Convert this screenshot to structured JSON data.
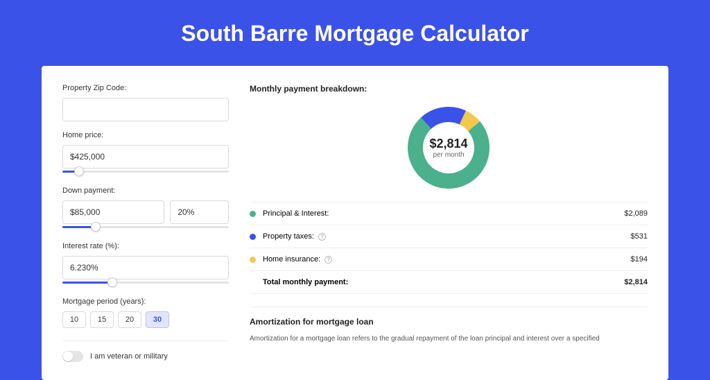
{
  "page": {
    "title": "South Barre Mortgage Calculator",
    "background_color": "#3b52e8"
  },
  "form": {
    "zip": {
      "label": "Property Zip Code:",
      "value": ""
    },
    "home_price": {
      "label": "Home price:",
      "value": "$425,000",
      "slider_pct": 10
    },
    "down_payment": {
      "label": "Down payment:",
      "amount": "$85,000",
      "percent": "20%",
      "slider_pct": 20
    },
    "interest_rate": {
      "label": "Interest rate (%):",
      "value": "6.230%",
      "slider_pct": 30
    },
    "period": {
      "label": "Mortgage period (years):",
      "options": [
        "10",
        "15",
        "20",
        "30"
      ],
      "selected": "30"
    },
    "veteran": {
      "label": "I am veteran or military",
      "value": false
    }
  },
  "breakdown": {
    "title": "Monthly payment breakdown:",
    "total_amount": "$2,814",
    "total_sub": "per month",
    "items": [
      {
        "key": "pi",
        "label": "Principal & Interest:",
        "value": "$2,089",
        "color": "#4bb08c",
        "pct": 74.2,
        "has_info": false
      },
      {
        "key": "tax",
        "label": "Property taxes:",
        "value": "$531",
        "color": "#3b52e8",
        "pct": 18.9,
        "has_info": true
      },
      {
        "key": "ins",
        "label": "Home insurance:",
        "value": "$194",
        "color": "#f2c94c",
        "pct": 6.9,
        "has_info": true
      }
    ],
    "total_row": {
      "label": "Total monthly payment:",
      "value": "$2,814"
    },
    "donut": {
      "size": 124,
      "radius": 48,
      "stroke_width": 22,
      "background": "#ffffff"
    }
  },
  "amortization": {
    "title": "Amortization for mortgage loan",
    "text": "Amortization for a mortgage loan refers to the gradual repayment of the loan principal and interest over a specified"
  }
}
